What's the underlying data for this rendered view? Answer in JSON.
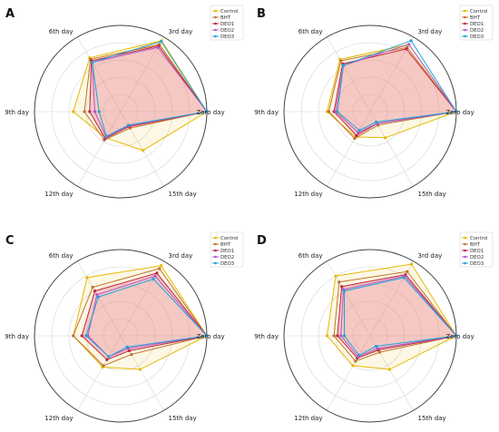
{
  "chart_data": [
    {
      "type": "radar",
      "panel": "A",
      "categories": [
        "Zero day",
        "3rd day",
        "6th day",
        "9th day",
        "12th day",
        "15th day"
      ],
      "rmax": 100,
      "series": [
        {
          "name": "Control",
          "color": "#e6b800",
          "values": [
            100,
            95,
            72,
            55,
            35,
            52
          ]
        },
        {
          "name": "BHT",
          "color": "#c0702a",
          "values": [
            100,
            90,
            70,
            42,
            38,
            22
          ]
        },
        {
          "name": "DEO1",
          "color": "#c0253a",
          "values": [
            100,
            88,
            68,
            36,
            36,
            20
          ]
        },
        {
          "name": "DEO2",
          "color": "#b455c8",
          "values": [
            100,
            86,
            66,
            30,
            34,
            19
          ]
        },
        {
          "name": "DEO3",
          "color": "#1fa4d6",
          "values": [
            100,
            94,
            66,
            25,
            33,
            18
          ]
        }
      ]
    },
    {
      "type": "radar",
      "panel": "B",
      "categories": [
        "Zero day",
        "3rd day",
        "6th day",
        "9th day",
        "12th day",
        "15th day"
      ],
      "rmax": 100,
      "series": [
        {
          "name": "Control",
          "color": "#e6b800",
          "values": [
            100,
            90,
            70,
            50,
            34,
            35
          ]
        },
        {
          "name": "BHT",
          "color": "#c0702a",
          "values": [
            100,
            86,
            68,
            48,
            36,
            18
          ]
        },
        {
          "name": "DEO1",
          "color": "#c0253a",
          "values": [
            100,
            84,
            64,
            42,
            32,
            16
          ]
        },
        {
          "name": "DEO2",
          "color": "#b455c8",
          "values": [
            100,
            90,
            62,
            40,
            28,
            16
          ]
        },
        {
          "name": "DEO3",
          "color": "#1fa4d6",
          "values": [
            100,
            95,
            62,
            38,
            25,
            14
          ]
        }
      ]
    },
    {
      "type": "radar",
      "panel": "C",
      "categories": [
        "Zero day",
        "3rd day",
        "6th day",
        "9th day",
        "12th day",
        "15th day"
      ],
      "rmax": 100,
      "series": [
        {
          "name": "Control",
          "color": "#e6b800",
          "values": [
            100,
            94,
            78,
            55,
            42,
            45
          ]
        },
        {
          "name": "BHT",
          "color": "#c0702a",
          "values": [
            100,
            90,
            65,
            55,
            40,
            25
          ]
        },
        {
          "name": "DEO1",
          "color": "#c0253a",
          "values": [
            100,
            84,
            60,
            45,
            32,
            20
          ]
        },
        {
          "name": "DEO2",
          "color": "#b455c8",
          "values": [
            100,
            80,
            55,
            38,
            28,
            17
          ]
        },
        {
          "name": "DEO3",
          "color": "#1fa4d6",
          "values": [
            100,
            76,
            52,
            40,
            28,
            15
          ]
        }
      ]
    },
    {
      "type": "radar",
      "panel": "D",
      "categories": [
        "Zero day",
        "3rd day",
        "6th day",
        "9th day",
        "12th day",
        "15th day"
      ],
      "rmax": 100,
      "series": [
        {
          "name": "Control",
          "color": "#e6b800",
          "values": [
            100,
            96,
            80,
            50,
            40,
            45
          ]
        },
        {
          "name": "BHT",
          "color": "#c0702a",
          "values": [
            100,
            86,
            72,
            42,
            34,
            22
          ]
        },
        {
          "name": "DEO1",
          "color": "#c0253a",
          "values": [
            100,
            82,
            66,
            38,
            30,
            19
          ]
        },
        {
          "name": "DEO2",
          "color": "#b455c8",
          "values": [
            100,
            80,
            62,
            34,
            28,
            17
          ]
        },
        {
          "name": "DEO3",
          "color": "#1fa4d6",
          "values": [
            100,
            78,
            60,
            30,
            26,
            14
          ]
        }
      ]
    }
  ]
}
